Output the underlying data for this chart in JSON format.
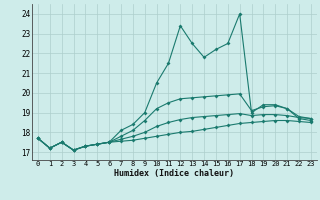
{
  "xlabel": "Humidex (Indice chaleur)",
  "bg_color": "#ceecea",
  "grid_color": "#aecfcc",
  "line_color": "#1a7a6e",
  "x": [
    0,
    1,
    2,
    3,
    4,
    5,
    6,
    7,
    8,
    9,
    10,
    11,
    12,
    13,
    14,
    15,
    16,
    17,
    18,
    19,
    20,
    21,
    22,
    23
  ],
  "series1": [
    17.7,
    17.2,
    17.5,
    17.1,
    17.3,
    17.4,
    17.5,
    18.1,
    18.4,
    19.0,
    20.5,
    21.5,
    23.4,
    22.5,
    21.8,
    22.2,
    22.5,
    24.0,
    19.0,
    19.4,
    19.4,
    19.2,
    18.7,
    18.6
  ],
  "series2": [
    17.7,
    17.2,
    17.5,
    17.1,
    17.3,
    17.4,
    17.5,
    17.8,
    18.1,
    18.6,
    19.2,
    19.5,
    19.7,
    19.75,
    19.8,
    19.85,
    19.9,
    19.95,
    19.1,
    19.3,
    19.35,
    19.2,
    18.8,
    18.7
  ],
  "series3": [
    17.7,
    17.2,
    17.5,
    17.1,
    17.3,
    17.4,
    17.5,
    17.65,
    17.8,
    18.0,
    18.3,
    18.5,
    18.65,
    18.75,
    18.8,
    18.85,
    18.9,
    18.95,
    18.85,
    18.9,
    18.9,
    18.85,
    18.75,
    18.7
  ],
  "series4": [
    17.7,
    17.2,
    17.5,
    17.1,
    17.3,
    17.4,
    17.5,
    17.55,
    17.6,
    17.7,
    17.8,
    17.9,
    18.0,
    18.05,
    18.15,
    18.25,
    18.35,
    18.45,
    18.5,
    18.55,
    18.6,
    18.6,
    18.55,
    18.5
  ],
  "ylim": [
    16.6,
    24.5
  ],
  "xlim": [
    -0.5,
    23.5
  ],
  "yticks": [
    17,
    18,
    19,
    20,
    21,
    22,
    23,
    24
  ],
  "xticks": [
    0,
    1,
    2,
    3,
    4,
    5,
    6,
    7,
    8,
    9,
    10,
    11,
    12,
    13,
    14,
    15,
    16,
    17,
    18,
    19,
    20,
    21,
    22,
    23
  ]
}
